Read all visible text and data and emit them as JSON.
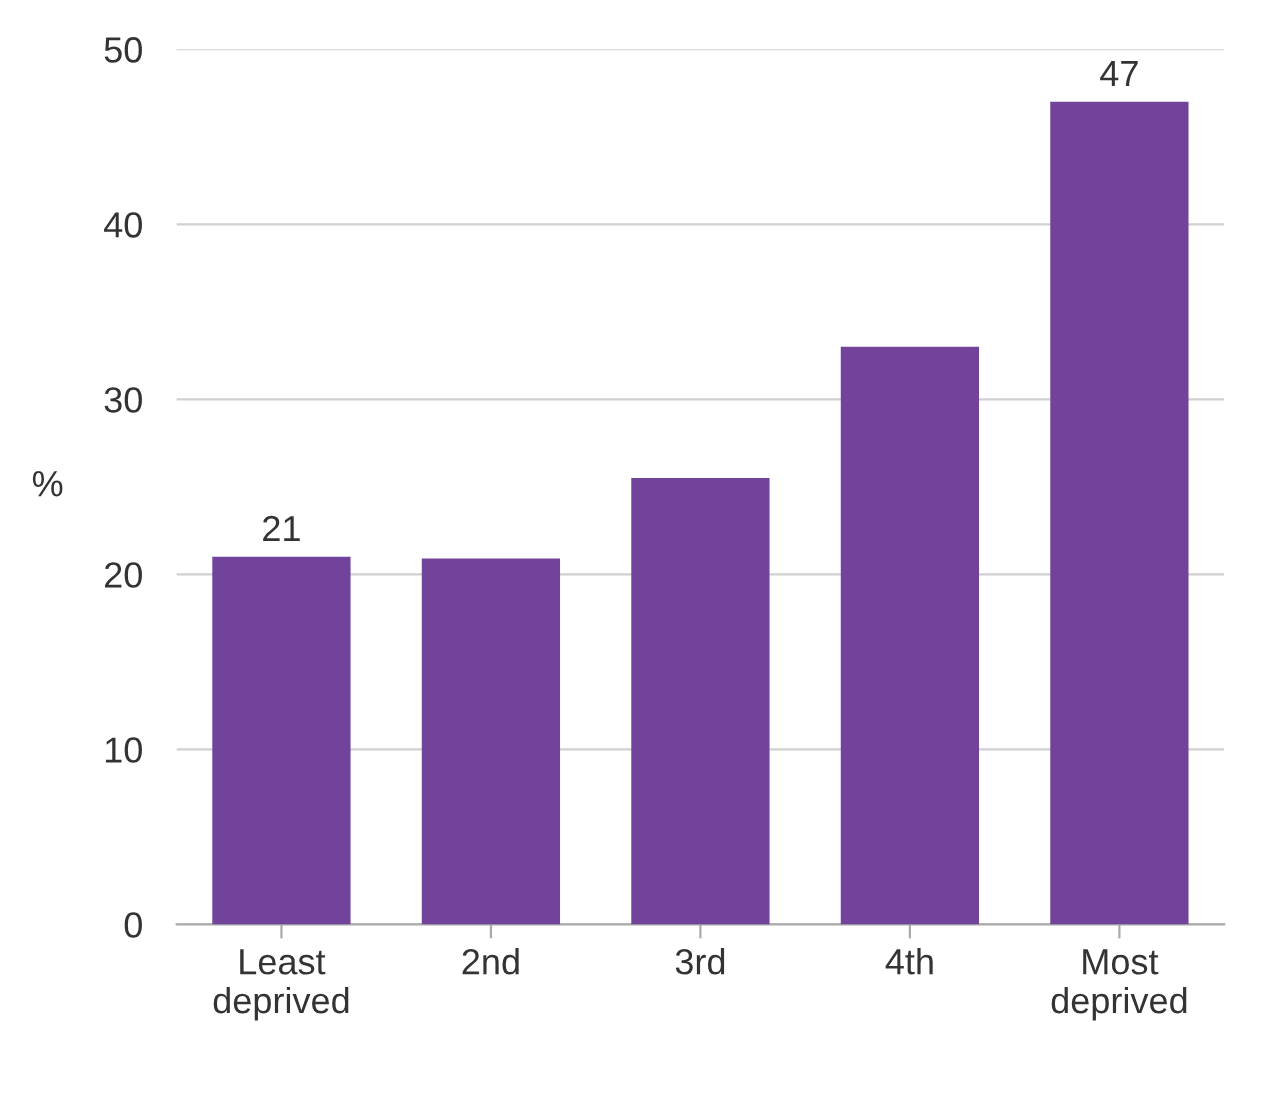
{
  "chart_data": {
    "type": "bar",
    "ylabel": "%",
    "categories": [
      "Least\ndeprived",
      "2nd",
      "3rd",
      "4th",
      "Most\ndeprived"
    ],
    "values": [
      21,
      20.9,
      25.5,
      33,
      47
    ],
    "value_labels": [
      "21",
      null,
      null,
      null,
      "47"
    ],
    "color": "#71439b",
    "ylim": [
      0,
      50
    ],
    "yticks": [
      0,
      10,
      20,
      30,
      40,
      50
    ],
    "grid": "y"
  }
}
